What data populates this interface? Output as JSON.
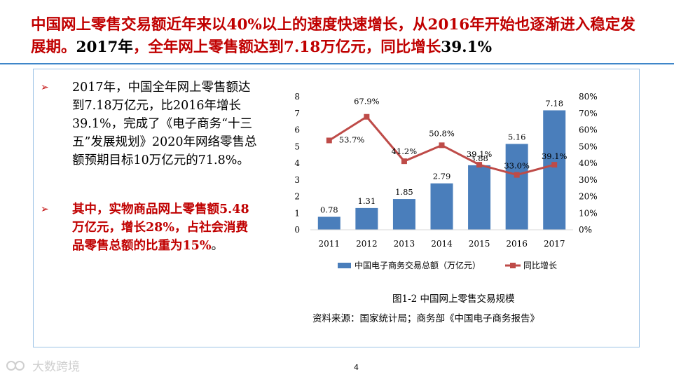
{
  "title": {
    "part1": "中国网上零售交易额",
    "part2": "近年来以40%以上的速度快速增长，从2016年开始也逐渐进入稳定发展期。",
    "part3": "2017年",
    "part4": "，全年网上零售额达到7.18万亿元，同比增长",
    "part5": "39.1%"
  },
  "bullets": {
    "first": "2017年，中国全年网上零售额达到7.18万亿元，比2016年增长39.1%，完成了《电子商务“十三五”发展规划》2020年网络零售总额预期目标10万亿元的71.8%。",
    "second_bold": "其中，实物商品网上零售额5.48万亿元，增长28%，占社会消费品零售总额的比重为15%",
    "second_tail": "。",
    "arrow_symbol": "➢"
  },
  "chart_data": {
    "type": "bar+line",
    "categories": [
      "2011",
      "2012",
      "2013",
      "2014",
      "2015",
      "2016",
      "2017"
    ],
    "series": [
      {
        "name": "中国电子商务交易总额（万亿元）",
        "kind": "bar",
        "axis": "left",
        "values": [
          0.78,
          1.31,
          1.85,
          2.79,
          3.88,
          5.16,
          7.18
        ],
        "labels": [
          "0.78",
          "1.31",
          "1.85",
          "2.79",
          "3.88",
          "5.16",
          "7.18"
        ],
        "color": "#4a7ebb"
      },
      {
        "name": "同比增长",
        "kind": "line",
        "axis": "right",
        "values": [
          53.7,
          67.9,
          41.2,
          50.8,
          39.1,
          33.0,
          39.1
        ],
        "labels": [
          "53.7%",
          "67.9%",
          "41.2%",
          "50.8%",
          "39.1%",
          "33.0%",
          "39.1%"
        ],
        "color": "#be4b48"
      }
    ],
    "y_left": {
      "min": 0,
      "max": 8,
      "ticks": [
        "0",
        "1",
        "2",
        "3",
        "4",
        "5",
        "6",
        "7",
        "8"
      ]
    },
    "y_right": {
      "min": 0,
      "max": 80,
      "ticks": [
        "0%",
        "10%",
        "20%",
        "30%",
        "40%",
        "50%",
        "60%",
        "70%",
        "80%"
      ]
    },
    "legend_position": "bottom",
    "caption": "图1-2  中国网上零售交易规模",
    "source": "资料来源：国家统计局；商务部《中国电子商务报告》"
  },
  "footer": {
    "page_number": "4",
    "watermark": "大数跨境"
  },
  "colors": {
    "accent_red": "#c00000",
    "rule_blue": "#3f86c9",
    "box_border": "#9dc3e6"
  }
}
